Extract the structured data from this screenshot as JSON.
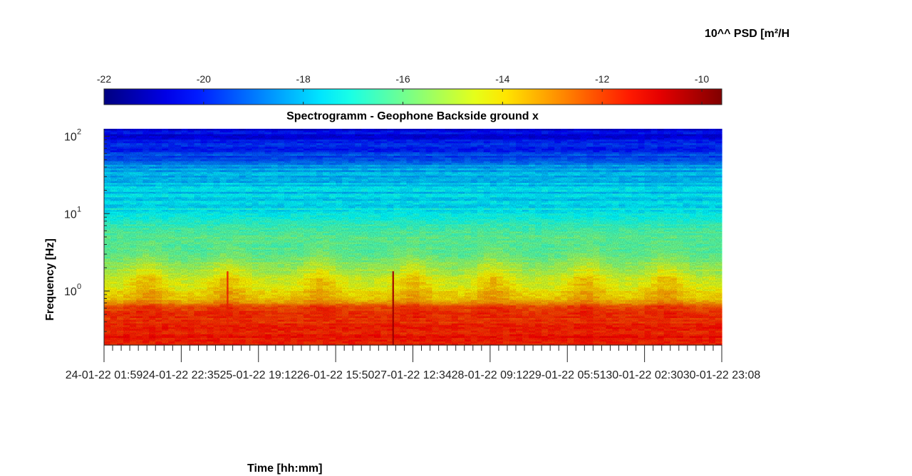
{
  "chart_data": {
    "type": "heatmap",
    "title": "Spectrogramm - Geophone Backside ground x",
    "xlabel": "Time [hh:mm]",
    "ylabel": "Frequency [Hz]",
    "x_ticks": [
      "24-01-22 01:59",
      "24-01-22 22:35",
      "25-01-22 19:12",
      "26-01-22 15:50",
      "27-01-22 12:34",
      "28-01-22 09:12",
      "29-01-22 05:51",
      "30-01-22 02:30",
      "30-01-22 23:08"
    ],
    "y_scale": "log",
    "ylim": [
      0.2,
      125
    ],
    "y_ticks": [
      {
        "base": "10",
        "exp": "0"
      },
      {
        "base": "10",
        "exp": "1"
      },
      {
        "base": "10",
        "exp": "2"
      }
    ],
    "colorbar": {
      "title": "10^^ PSD [m²/H",
      "range": [
        -22,
        -9.6
      ],
      "ticks": [
        -22,
        -20,
        -18,
        -16,
        -14,
        -12,
        -10
      ],
      "colormap": "jet",
      "location": "top"
    },
    "psd_profile": [
      {
        "frequency_hz": 125,
        "log10_psd": -20.6
      },
      {
        "frequency_hz": 60,
        "log10_psd": -19.8
      },
      {
        "frequency_hz": 40,
        "log10_psd": -18.4
      },
      {
        "frequency_hz": 20,
        "log10_psd": -17.8
      },
      {
        "frequency_hz": 10,
        "log10_psd": -17.4
      },
      {
        "frequency_hz": 6,
        "log10_psd": -16.3
      },
      {
        "frequency_hz": 3,
        "log10_psd": -16.1
      },
      {
        "frequency_hz": 1.2,
        "log10_psd": -14.6
      },
      {
        "frequency_hz": 0.75,
        "log10_psd": -13.6
      },
      {
        "frequency_hz": 0.6,
        "log10_psd": -11.9
      },
      {
        "frequency_hz": 0.2,
        "log10_psd": -11.4
      }
    ],
    "events": [
      {
        "time_fraction": 0.468,
        "log10_psd": -10.2,
        "note": "broadband vertical streak"
      },
      {
        "time_fraction": 0.2,
        "log10_psd": -11.6,
        "note": "vertical streak"
      }
    ],
    "daily_activity": [
      0.07,
      0.2,
      0.35,
      0.5,
      0.63,
      0.78,
      0.91
    ]
  }
}
